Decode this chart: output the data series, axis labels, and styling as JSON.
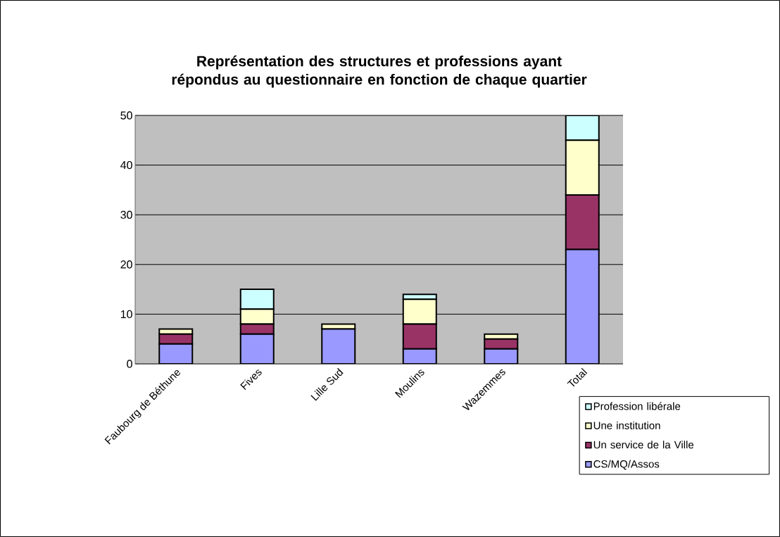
{
  "chart_data": {
    "type": "bar",
    "title": "Représentation des structures et professions ayant répondus au questionnaire en fonction de chaque quartier",
    "categories": [
      "Faubourg de Béthune",
      "Fives",
      "Lille Sud",
      "Moulins",
      "Wazemmes",
      "Total"
    ],
    "series": [
      {
        "name": "CS/MQ/Assos",
        "color": "#9999ff",
        "values": [
          4,
          6,
          7,
          3,
          3,
          23
        ]
      },
      {
        "name": "Un service de la Ville",
        "color": "#993366",
        "values": [
          2,
          2,
          0,
          5,
          2,
          11
        ]
      },
      {
        "name": "Une institution",
        "color": "#ffffcc",
        "values": [
          1,
          3,
          1,
          5,
          1,
          11
        ]
      },
      {
        "name": "Profession libérale",
        "color": "#ccffff",
        "values": [
          0,
          4,
          0,
          1,
          0,
          5
        ]
      }
    ],
    "stacked": true,
    "ylim": [
      0,
      50
    ],
    "yticks": [
      0,
      10,
      20,
      30,
      40,
      50
    ],
    "grid": "y",
    "legend": "bottom right"
  }
}
